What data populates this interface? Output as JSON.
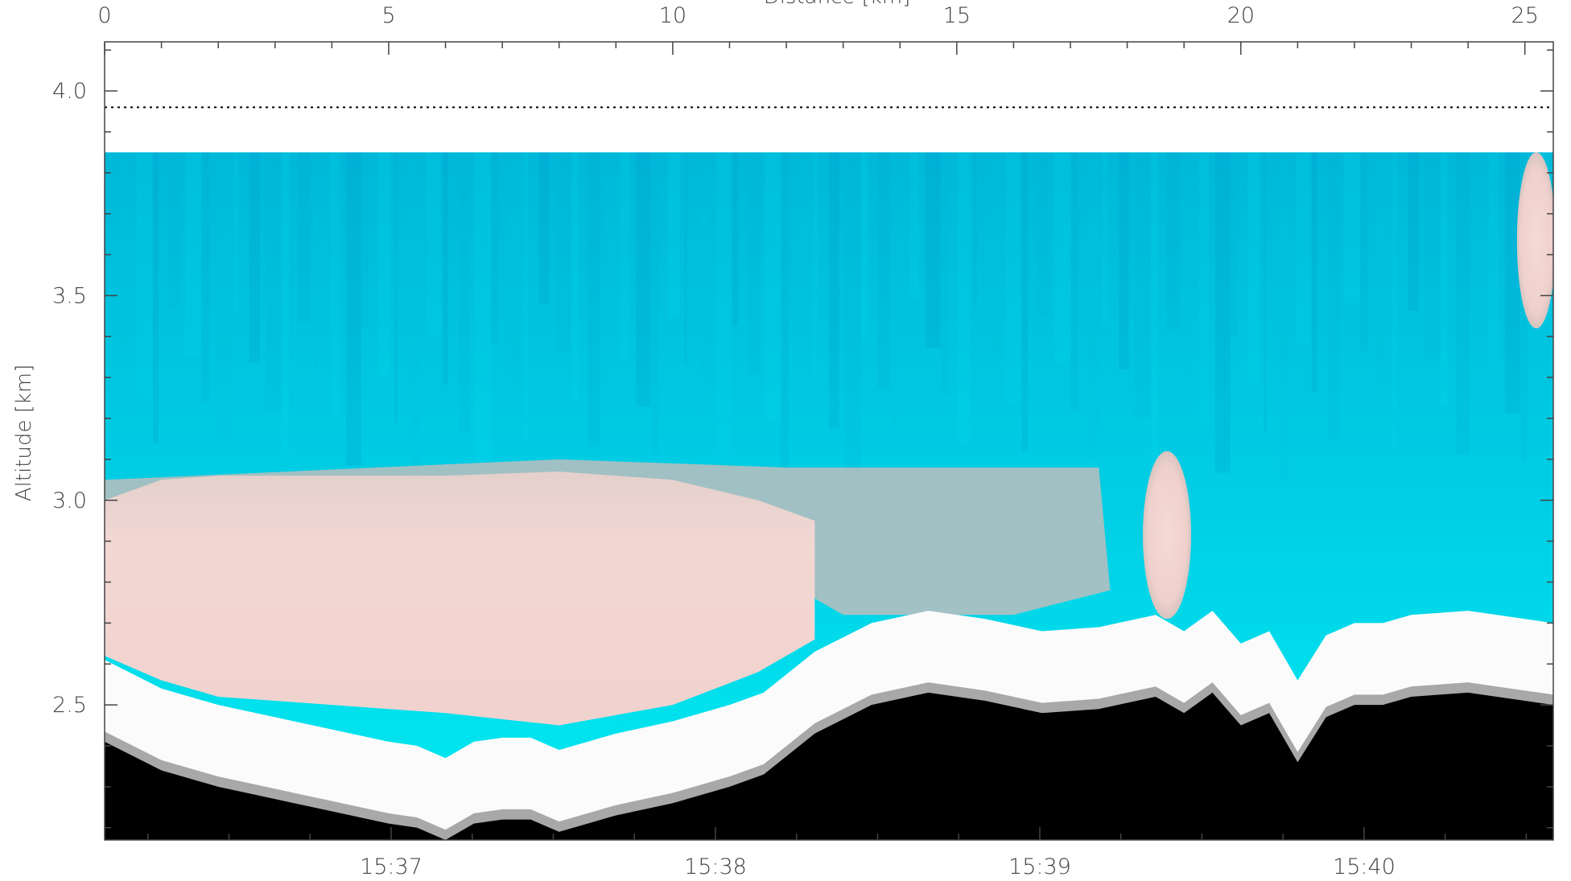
{
  "chart_data": {
    "type": "heatmap",
    "title": "",
    "ylabel": "Altitude [km]",
    "top_xlabel": "Distance [km]",
    "ylim": [
      2.17,
      4.12
    ],
    "y_ticks": [
      2.5,
      3.0,
      3.5,
      4.0
    ],
    "y_tick_labels": [
      "2.5",
      "3.0",
      "3.5",
      "4.0"
    ],
    "top_x_range": [
      0,
      25.5
    ],
    "top_x_ticks": [
      0,
      5,
      10,
      15,
      20,
      25
    ],
    "top_x_tick_labels": [
      "0",
      "5",
      "10",
      "15",
      "20",
      "25"
    ],
    "bottom_x_range": [
      "15:36:07",
      "15:40:35"
    ],
    "bottom_x_ticks": [
      "15:37",
      "15:38",
      "15:39",
      "15:40"
    ],
    "bottom_x_tick_labels": [
      "15:37",
      "15:38",
      "15:39",
      "15:40"
    ],
    "flight_altitude_km": 3.96,
    "data_top_km": 3.85,
    "ground_profile": {
      "distance_km": [
        0,
        1,
        2,
        3,
        4,
        5,
        5.5,
        6,
        6.5,
        7,
        7.5,
        8,
        9,
        10,
        11,
        11.6,
        12.5,
        13.5,
        14.5,
        15.5,
        16.5,
        17.5,
        18.5,
        19,
        19.5,
        20,
        20.5,
        21,
        21.5,
        22,
        22.5,
        23,
        24,
        25.5
      ],
      "altitude_km": [
        2.41,
        2.34,
        2.3,
        2.27,
        2.24,
        2.21,
        2.2,
        2.17,
        2.21,
        2.22,
        2.22,
        2.19,
        2.23,
        2.26,
        2.3,
        2.33,
        2.43,
        2.5,
        2.53,
        2.51,
        2.48,
        2.49,
        2.52,
        2.48,
        2.53,
        2.45,
        2.48,
        2.36,
        2.47,
        2.5,
        2.5,
        2.52,
        2.53,
        2.5
      ]
    },
    "pink_layer": {
      "distance_km": [
        0,
        1,
        2,
        4,
        6,
        8,
        10,
        11.5,
        12.5
      ],
      "top_km": [
        3.0,
        3.05,
        3.06,
        3.06,
        3.06,
        3.07,
        3.05,
        3.0,
        2.95
      ],
      "bottom_km": [
        2.62,
        2.56,
        2.52,
        2.5,
        2.48,
        2.45,
        2.5,
        2.58,
        2.66
      ]
    },
    "isolated_clouds": [
      {
        "center_km": 18.7,
        "bottom_km": 2.71,
        "top_km": 3.12
      },
      {
        "center_km": 25.2,
        "bottom_km": 3.42,
        "top_km": 3.85
      }
    ],
    "colors": {
      "clear_air_top": "#00bcd8",
      "clear_air_low": "#00e8f0",
      "cloud_pink": "#f2d6d4",
      "cloud_gray": "#b8b8b8",
      "ground": "#000000",
      "no_data": "#ffffff"
    }
  }
}
